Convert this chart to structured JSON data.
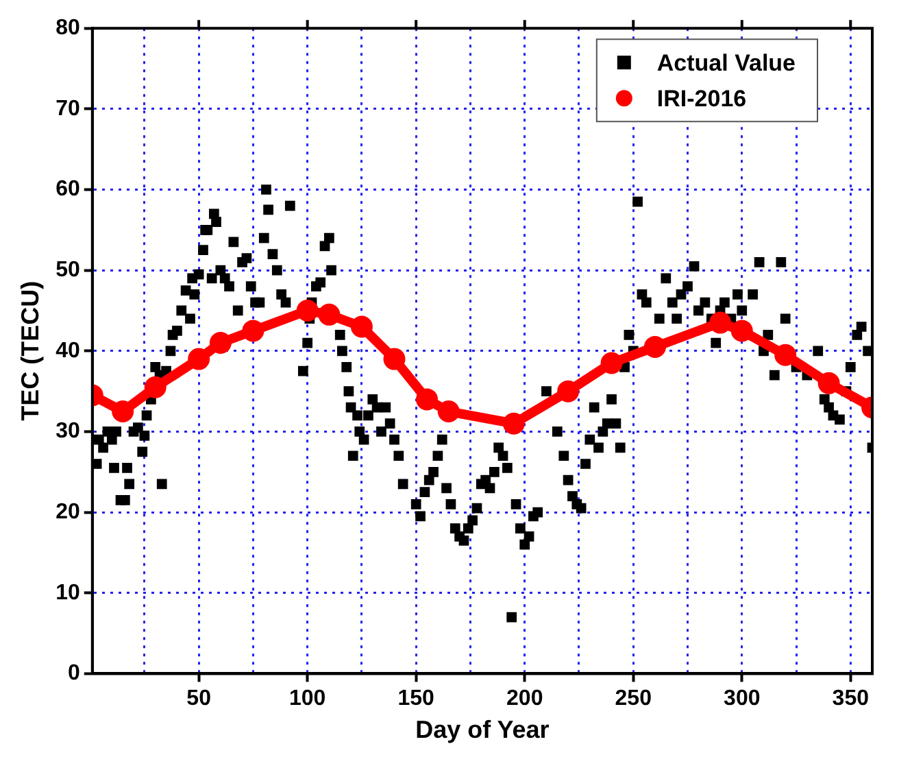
{
  "chart_data": {
    "type": "scatter",
    "xlabel": "Day of Year",
    "ylabel": "TEC (TECU)",
    "xlim": [
      1,
      360
    ],
    "ylim": [
      0,
      80
    ],
    "xticks": [
      {
        "value": 25,
        "label": null
      },
      50,
      {
        "value": 75,
        "label": null
      },
      100,
      {
        "value": 125,
        "label": null
      },
      150,
      {
        "value": 175,
        "label": null
      },
      200,
      {
        "value": 225,
        "label": null
      },
      250,
      {
        "value": 275,
        "label": null
      },
      300,
      {
        "value": 325,
        "label": null
      },
      350
    ],
    "yticks": [
      0,
      10,
      20,
      30,
      40,
      50,
      60,
      70,
      80
    ],
    "grid": true,
    "legend": "top right",
    "series": [
      {
        "name": "Actual Value",
        "marker": "square",
        "color": "#000000",
        "x": [
          3,
          4,
          6,
          8,
          10,
          11,
          12,
          14,
          16,
          17,
          18,
          20,
          22,
          24,
          25,
          26,
          28,
          30,
          32,
          33,
          35,
          37,
          38,
          40,
          42,
          44,
          46,
          47,
          48,
          50,
          52,
          53,
          54,
          56,
          57,
          58,
          60,
          62,
          64,
          66,
          68,
          70,
          72,
          74,
          76,
          78,
          80,
          81,
          82,
          84,
          86,
          88,
          90,
          92,
          98,
          100,
          101,
          102,
          104,
          106,
          108,
          110,
          111,
          115,
          116,
          118,
          119,
          120,
          121,
          123,
          124,
          126,
          128,
          130,
          132,
          134,
          136,
          138,
          140,
          142,
          144,
          150,
          152,
          154,
          156,
          158,
          160,
          162,
          164,
          166,
          168,
          170,
          172,
          174,
          176,
          178,
          180,
          182,
          184,
          186,
          188,
          190,
          192,
          194,
          196,
          198,
          200,
          202,
          204,
          206,
          210,
          215,
          218,
          220,
          222,
          224,
          226,
          228,
          230,
          232,
          234,
          236,
          238,
          240,
          242,
          244,
          246,
          248,
          250,
          252,
          254,
          256,
          262,
          265,
          268,
          270,
          272,
          275,
          278,
          280,
          283,
          286,
          288,
          290,
          292,
          295,
          298,
          300,
          305,
          308,
          310,
          312,
          315,
          318,
          320,
          325,
          330,
          335,
          338,
          340,
          342,
          345,
          348,
          350,
          353,
          355,
          358,
          360
        ],
        "values": [
          26,
          29,
          28,
          30,
          29,
          25.5,
          30,
          21.5,
          21.5,
          25.5,
          23.5,
          30,
          30.5,
          27.5,
          29.5,
          32,
          34,
          38,
          37,
          23.5,
          37.5,
          40,
          42,
          42.5,
          45,
          47.5,
          44,
          49,
          47,
          49.5,
          52.5,
          55,
          55,
          49,
          57,
          56,
          50,
          49,
          48,
          53.5,
          45,
          51,
          51.5,
          48,
          46,
          46,
          54,
          60,
          57.5,
          52,
          50,
          47,
          46,
          58,
          37.5,
          41,
          44,
          46,
          48,
          48.5,
          53,
          54,
          50,
          42,
          40,
          38,
          35,
          33,
          27,
          32,
          30,
          29,
          32,
          34,
          33,
          30,
          33,
          31,
          29,
          27,
          23.5,
          21,
          19.5,
          22.5,
          24,
          25,
          27,
          29,
          23,
          21,
          18,
          17,
          16.5,
          18,
          19,
          20.5,
          23.5,
          24,
          23,
          25,
          28,
          27,
          25.5,
          7,
          21,
          18,
          16,
          17,
          19.5,
          20,
          35,
          30,
          27,
          24,
          22,
          21,
          20.5,
          26,
          29,
          33,
          28,
          30,
          31,
          34,
          31,
          28,
          38,
          42,
          40,
          58.5,
          47,
          46,
          44,
          49,
          46,
          44,
          47,
          48,
          50.5,
          45,
          46,
          44,
          41,
          45,
          46,
          44,
          47,
          45,
          47,
          51,
          40,
          42,
          37,
          51,
          44,
          38,
          37,
          40,
          34,
          33,
          32,
          31.5,
          35,
          38,
          42,
          43,
          40,
          28
        ]
      },
      {
        "name": "IRI-2016",
        "type": "line",
        "marker": "circle",
        "color": "#ff0000",
        "x": [
          1,
          15,
          30,
          50,
          60,
          75,
          100,
          110,
          125,
          140,
          155,
          165,
          195,
          220,
          240,
          260,
          290,
          300,
          320,
          340,
          360
        ],
        "values": [
          34.5,
          32.5,
          35.5,
          39,
          41,
          42.5,
          45,
          44.5,
          43,
          39,
          34,
          32.5,
          31,
          35,
          38.5,
          40.5,
          43.5,
          42.5,
          39.5,
          36,
          33
        ]
      }
    ]
  }
}
